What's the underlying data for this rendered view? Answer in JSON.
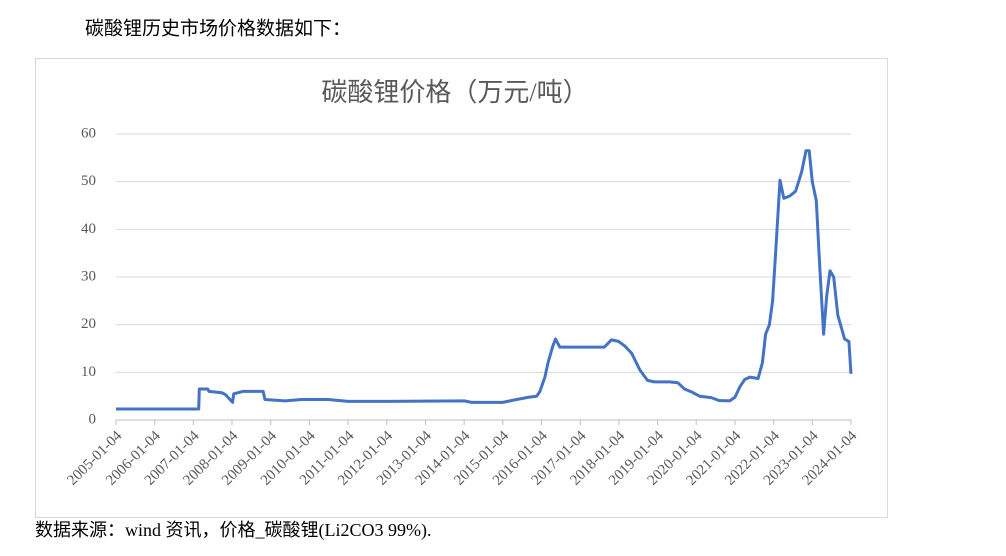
{
  "intro": "碳酸锂历史市场价格数据如下：",
  "source": "数据来源：wind 资讯，价格_碳酸锂(Li2CO3 99%).",
  "chart_data": {
    "type": "line",
    "title": "碳酸锂价格（万元/吨）",
    "color": "#4472c4",
    "grid": true,
    "x": [
      "2005-01-04",
      "2007-02-24",
      "2007-03-01",
      "2007-05-20",
      "2007-06-01",
      "2007-10-01",
      "2007-11-05",
      "2008-01-10",
      "2008-01-20",
      "2008-04-15",
      "2008-10-25",
      "2008-11-10",
      "2009-05-20",
      "2009-10-20",
      "2010-07-01",
      "2011-01-04",
      "2012-01-04",
      "2014-01-04",
      "2014-03-15",
      "2015-01-04",
      "2015-04-20",
      "2015-09-10",
      "2015-11-20",
      "2015-12-20",
      "2016-02-05",
      "2016-03-05",
      "2016-04-20",
      "2016-05-15",
      "2016-06-25",
      "2017-08-20",
      "2017-10-25",
      "2018-01-01",
      "2018-03-01",
      "2018-05-05",
      "2018-07-20",
      "2018-10-01",
      "2018-12-05",
      "2019-04-25",
      "2019-07-15",
      "2019-09-15",
      "2019-12-01",
      "2020-02-05",
      "2020-05-25",
      "2020-08-05",
      "2020-11-15",
      "2021-01-04",
      "2021-02-20",
      "2021-04-05",
      "2021-05-25",
      "2021-08-10",
      "2021-09-20",
      "2021-10-20",
      "2021-11-25",
      "2021-12-25",
      "2022-01-25",
      "2022-03-05",
      "2022-04-10",
      "2022-06-05",
      "2022-07-30",
      "2022-09-25",
      "2022-11-05",
      "2022-12-05",
      "2023-01-04",
      "2023-02-10",
      "2023-03-15",
      "2023-04-20",
      "2023-05-20",
      "2023-06-20",
      "2023-07-25",
      "2023-09-01",
      "2023-11-05",
      "2023-12-15",
      "2024-01-04"
    ],
    "values": [
      2.3,
      2.3,
      6.5,
      6.5,
      6.0,
      5.7,
      5.3,
      3.7,
      5.5,
      6.0,
      6.0,
      4.3,
      4.0,
      4.3,
      4.3,
      3.9,
      3.9,
      4.0,
      3.7,
      3.7,
      4.2,
      4.8,
      5.0,
      6.0,
      9.0,
      12.0,
      15.5,
      17.0,
      15.3,
      15.3,
      16.8,
      16.5,
      15.5,
      14.0,
      10.5,
      8.3,
      8.0,
      8.0,
      7.8,
      6.5,
      5.8,
      5.0,
      4.7,
      4.1,
      4.0,
      4.8,
      7.0,
      8.5,
      9.0,
      8.7,
      12.0,
      18.0,
      20.0,
      25.0,
      36.0,
      50.3,
      46.5,
      47.0,
      48.0,
      52.0,
      56.5,
      56.5,
      50.0,
      46.0,
      32.0,
      18.0,
      26.0,
      31.3,
      30.0,
      22.0,
      17.0,
      16.5,
      9.7
    ],
    "xlim": [
      "2005-01-04",
      "2024-01-04"
    ],
    "xticks": [
      "2005-01-04",
      "2006-01-04",
      "2007-01-04",
      "2008-01-04",
      "2009-01-04",
      "2010-01-04",
      "2011-01-04",
      "2012-01-04",
      "2013-01-04",
      "2014-01-04",
      "2015-01-04",
      "2016-01-04",
      "2017-01-04",
      "2018-01-04",
      "2019-01-04",
      "2020-01-04",
      "2021-01-04",
      "2022-01-04",
      "2023-01-04",
      "2024-01-04"
    ],
    "ylim": [
      0,
      60
    ],
    "yticks": [
      0,
      10,
      20,
      30,
      40,
      50,
      60
    ]
  }
}
